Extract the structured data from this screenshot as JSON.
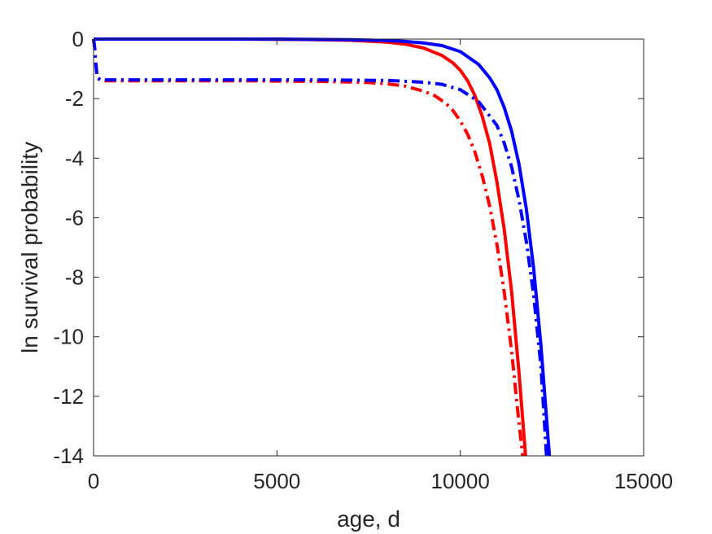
{
  "chart_data": {
    "type": "line",
    "title": "",
    "xlabel": "age, d",
    "ylabel": "ln survival probability",
    "xlim": [
      0,
      15000
    ],
    "ylim": [
      -14,
      0
    ],
    "xticks": [
      0,
      5000,
      10000,
      15000
    ],
    "yticks": [
      0,
      -2,
      -4,
      -6,
      -8,
      -10,
      -12,
      -14
    ],
    "grid": false,
    "legend": "none",
    "series": [
      {
        "color": "#ff0000",
        "style": "solid",
        "x": [
          0,
          1000,
          2000,
          3000,
          4000,
          5000,
          6000,
          7000,
          8000,
          8500,
          9000,
          9500,
          9800,
          10000,
          10200,
          10400,
          10600,
          10800,
          11000,
          11200,
          11400,
          11600,
          11780
        ],
        "y": [
          0,
          0,
          0,
          0,
          0,
          -0.01,
          -0.02,
          -0.04,
          -0.1,
          -0.17,
          -0.3,
          -0.55,
          -0.8,
          -1.05,
          -1.4,
          -1.9,
          -2.6,
          -3.5,
          -4.8,
          -6.4,
          -8.5,
          -11.2,
          -14
        ]
      },
      {
        "color": "#0000ff",
        "style": "solid",
        "x": [
          0,
          1000,
          2000,
          3000,
          4000,
          5000,
          6000,
          7000,
          8000,
          8500,
          9000,
          9500,
          10000,
          10500,
          10800,
          11000,
          11200,
          11400,
          11600,
          11800,
          12000,
          12200,
          12430
        ],
        "y": [
          0,
          0,
          0,
          0,
          0,
          0,
          -0.01,
          -0.02,
          -0.05,
          -0.08,
          -0.13,
          -0.22,
          -0.42,
          -0.85,
          -1.3,
          -1.7,
          -2.3,
          -3.1,
          -4.2,
          -5.7,
          -7.7,
          -10.3,
          -14
        ]
      },
      {
        "color": "#ff0000",
        "style": "dashdot",
        "x": [
          0,
          30,
          60,
          100,
          200,
          1000,
          2000,
          3000,
          4000,
          5000,
          6000,
          7000,
          7500,
          8000,
          8500,
          9000,
          9300,
          9600,
          9800,
          10000,
          10200,
          10400,
          10600,
          10800,
          11000,
          11200,
          11400,
          11550,
          11700
        ],
        "y": [
          0,
          -0.3,
          -0.8,
          -1.3,
          -1.4,
          -1.4,
          -1.4,
          -1.4,
          -1.4,
          -1.41,
          -1.42,
          -1.44,
          -1.46,
          -1.5,
          -1.58,
          -1.75,
          -1.9,
          -2.15,
          -2.4,
          -2.75,
          -3.2,
          -3.8,
          -4.6,
          -5.6,
          -6.9,
          -8.5,
          -10.5,
          -12.3,
          -14
        ]
      },
      {
        "color": "#0000ff",
        "style": "dashdot",
        "x": [
          0,
          30,
          60,
          100,
          200,
          1000,
          2000,
          3000,
          4000,
          5000,
          6000,
          7000,
          8000,
          9000,
          9500,
          10000,
          10500,
          11000,
          11200,
          11400,
          11600,
          11800,
          12000,
          12200,
          12350
        ],
        "y": [
          0,
          -0.3,
          -0.8,
          -1.3,
          -1.37,
          -1.37,
          -1.37,
          -1.37,
          -1.37,
          -1.37,
          -1.37,
          -1.38,
          -1.39,
          -1.45,
          -1.52,
          -1.7,
          -2.1,
          -2.9,
          -3.5,
          -4.3,
          -5.4,
          -6.8,
          -8.6,
          -11.0,
          -14
        ]
      }
    ]
  }
}
